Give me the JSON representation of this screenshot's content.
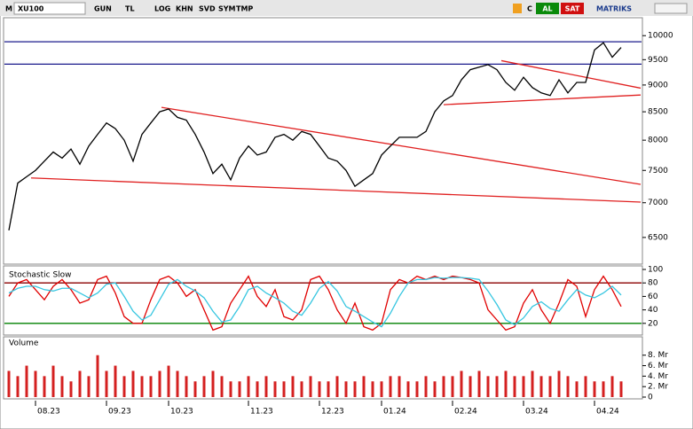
{
  "toolbar": {
    "symbol_prefix": "M",
    "symbol": "XU100",
    "buttons": [
      "GUN",
      "TL",
      "LOG",
      "KHN",
      "SVD",
      "SYM",
      "TMP"
    ],
    "right_buttons": [
      "C",
      "AL",
      "SAT"
    ],
    "brand": "MATRIKS"
  },
  "chart_data": [
    {
      "type": "line",
      "color": "#000000",
      "log_scale": true,
      "values": [
        6600,
        7300,
        7400,
        7500,
        7650,
        7800,
        7700,
        7850,
        7600,
        7900,
        8100,
        8300,
        8200,
        8000,
        7650,
        8100,
        8300,
        8500,
        8550,
        8400,
        8350,
        8100,
        7800,
        7450,
        7600,
        7350,
        7700,
        7900,
        7750,
        7800,
        8050,
        8100,
        8000,
        8150,
        8100,
        7900,
        7700,
        7650,
        7500,
        7250,
        7350,
        7450,
        7750,
        7900,
        8050,
        8050,
        8050,
        8150,
        8500,
        8700,
        8800,
        9100,
        9300,
        9350,
        9400,
        9300,
        9050,
        8900,
        9150,
        8950,
        8850,
        8800,
        9100,
        8850,
        9050,
        9050,
        9700,
        9850,
        9550,
        9750
      ],
      "ylim": [
        6140,
        10390
      ],
      "yticks": [
        6500,
        7000,
        7500,
        8000,
        8500,
        9000,
        9500,
        10000
      ],
      "hlines": [
        {
          "value": 9870,
          "color": "#1a1a8c"
        },
        {
          "value": 9410,
          "color": "#1a1a8c"
        }
      ],
      "trendlines": [
        {
          "x": [
            17.2,
            71.2
          ],
          "y": [
            8580,
            7280
          ],
          "color": "#e02020"
        },
        {
          "x": [
            55.5,
            71.2
          ],
          "y": [
            9480,
            8940
          ],
          "color": "#e02020"
        },
        {
          "x": [
            49,
            71.2
          ],
          "y": [
            8630,
            8810
          ],
          "color": "#e02020"
        },
        {
          "x": [
            2.5,
            71.2
          ],
          "y": [
            7380,
            7010
          ],
          "color": "#e02020"
        }
      ]
    },
    {
      "type": "line",
      "title": "Stochastic Slow",
      "series": [
        {
          "color": "#e00000",
          "values": [
            60,
            80,
            85,
            70,
            55,
            75,
            85,
            70,
            50,
            55,
            85,
            90,
            65,
            30,
            20,
            20,
            55,
            85,
            90,
            80,
            60,
            70,
            40,
            10,
            15,
            50,
            70,
            90,
            60,
            45,
            70,
            30,
            25,
            40,
            85,
            90,
            70,
            40,
            20,
            50,
            15,
            10,
            20,
            70,
            85,
            80,
            90,
            85,
            90,
            85,
            90,
            88,
            85,
            80,
            40,
            25,
            10,
            15,
            50,
            70,
            40,
            20,
            50,
            85,
            75,
            30,
            70,
            90,
            70,
            45
          ]
        },
        {
          "color": "#36c6e0",
          "values": [
            65,
            72,
            75,
            75,
            70,
            68,
            72,
            72,
            65,
            58,
            65,
            78,
            80,
            60,
            38,
            25,
            32,
            55,
            78,
            85,
            75,
            68,
            58,
            38,
            22,
            25,
            45,
            70,
            75,
            65,
            58,
            50,
            38,
            32,
            50,
            72,
            82,
            68,
            45,
            38,
            30,
            22,
            15,
            35,
            60,
            80,
            85,
            85,
            88,
            87,
            88,
            88,
            87,
            85,
            68,
            48,
            25,
            18,
            28,
            45,
            52,
            42,
            38,
            55,
            70,
            62,
            58,
            65,
            75,
            62
          ]
        }
      ],
      "ylim": [
        0,
        100
      ],
      "yticks": [
        20,
        40,
        60,
        80,
        100
      ],
      "hlines": [
        {
          "value": 80,
          "color": "#8b0000"
        },
        {
          "value": 20,
          "color": "#008000"
        }
      ]
    },
    {
      "type": "bar",
      "title": "Volume",
      "color": "#d42020",
      "categories": [
        null,
        null,
        null,
        "08.23",
        null,
        null,
        null,
        null,
        null,
        null,
        null,
        "09.23",
        null,
        null,
        null,
        null,
        null,
        null,
        "10.23",
        null,
        null,
        null,
        null,
        null,
        null,
        null,
        null,
        "11.23",
        null,
        null,
        null,
        null,
        null,
        null,
        null,
        "12.23",
        null,
        null,
        null,
        null,
        null,
        null,
        "01.24",
        null,
        null,
        null,
        null,
        null,
        null,
        null,
        "02.24",
        null,
        null,
        null,
        null,
        null,
        null,
        null,
        "03.24",
        null,
        null,
        null,
        null,
        null,
        null,
        null,
        "04.24",
        null,
        null,
        null
      ],
      "values": [
        5,
        4,
        6,
        5,
        4,
        6,
        4,
        3,
        5,
        4,
        8,
        5,
        6,
        4,
        5,
        4,
        4,
        5,
        6,
        5,
        4,
        3,
        4,
        5,
        4,
        3,
        3,
        4,
        3,
        4,
        3,
        3,
        4,
        3,
        4,
        3,
        3,
        4,
        3,
        3,
        4,
        3,
        3,
        4,
        4,
        3,
        3,
        4,
        3,
        4,
        4,
        5,
        4,
        5,
        4,
        4,
        5,
        4,
        4,
        5,
        4,
        4,
        5,
        4,
        3,
        4,
        3,
        3,
        4,
        3
      ],
      "ylim": [
        0,
        11
      ],
      "yticks": [
        0,
        {
          "value": 2,
          "label": "2. Mr"
        },
        {
          "value": 4,
          "label": "4. Mr"
        },
        {
          "value": 6,
          "label": "6. Mr"
        },
        {
          "value": 8,
          "label": "8. Mr"
        }
      ]
    }
  ]
}
